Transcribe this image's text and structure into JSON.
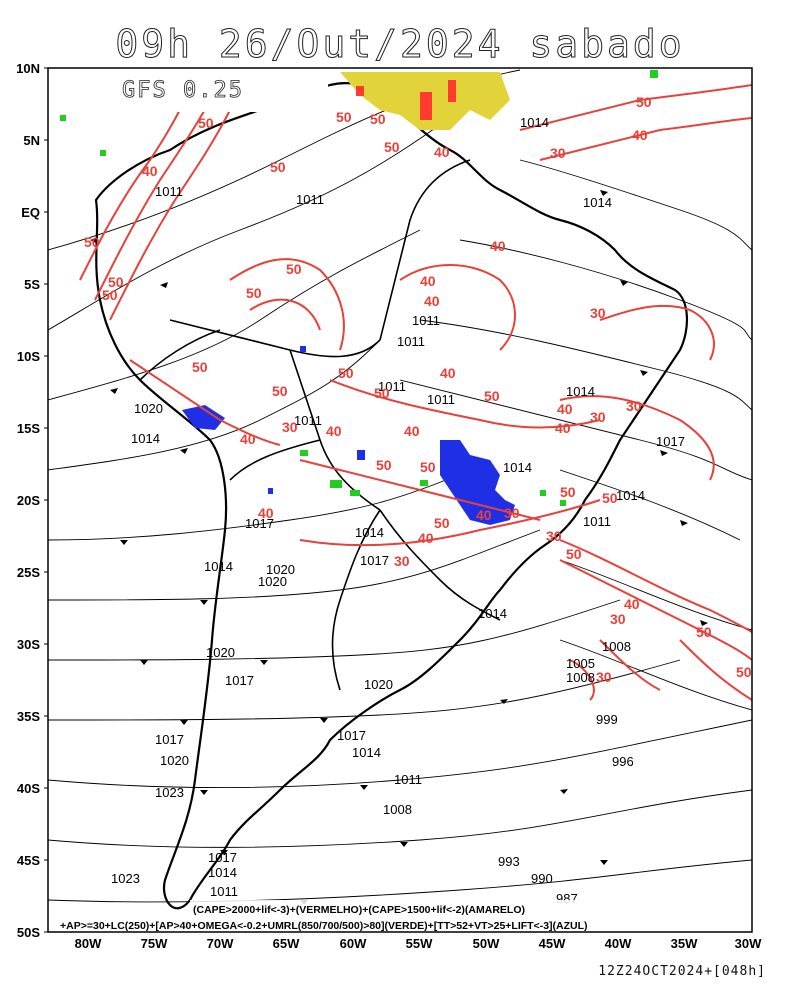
{
  "header": {
    "title": "09h 26/Out/2024 sabado",
    "model": "GFS 0.25",
    "timestamp": "12Z24OCT2024+[048h]"
  },
  "axes": {
    "lat_labels": [
      "10N",
      "5N",
      "EQ",
      "5S",
      "10S",
      "15S",
      "20S",
      "25S",
      "30S",
      "35S",
      "40S",
      "45S",
      "50S"
    ],
    "lon_labels": [
      "80W",
      "75W",
      "70W",
      "65W",
      "60W",
      "55W",
      "50W",
      "45W",
      "40W",
      "35W",
      "30W"
    ]
  },
  "pressure_labels": [
    "1014",
    "1014",
    "1011",
    "1011",
    "1011",
    "1011",
    "1011",
    "1014",
    "1020",
    "1014",
    "1011",
    "1011",
    "1014",
    "1017",
    "1014",
    "1011",
    "1017",
    "1014",
    "1020",
    "1020",
    "1017",
    "1014",
    "1008",
    "1005",
    "1008",
    "1020",
    "1017",
    "1020",
    "999",
    "996",
    "1017",
    "1014",
    "1011",
    "1008",
    "1023",
    "993",
    "990",
    "987",
    "1017",
    "1014",
    "1011",
    "1023",
    "1020",
    "1017",
    "1014"
  ],
  "wind_labels": [
    "50",
    "50",
    "50",
    "50",
    "40",
    "30",
    "40",
    "50",
    "40",
    "50",
    "50",
    "30",
    "50",
    "40",
    "50",
    "50",
    "40",
    "50",
    "40",
    "50",
    "40",
    "50",
    "30",
    "40",
    "40",
    "50",
    "40",
    "50",
    "50",
    "40",
    "30",
    "50",
    "30",
    "50",
    "40",
    "50",
    "30",
    "40",
    "30",
    "50",
    "40",
    "50",
    "50",
    "40",
    "30",
    "50",
    "30",
    "40",
    "50",
    "30"
  ],
  "legend": {
    "line1": "(CAPE>2000+lif<-3)+(VERMELHO)+(CAPE>1500+lif<-2)(AMARELO)",
    "line2": "+AP>=30+LC(250)+[AP>40+OMEGA<-0.2+UMRL(850/700/500)>80](VERDE)+[TT>52+VT>25+LIFT<-3](AZUL)"
  },
  "colors": {
    "wind_isotach": "#e8413a",
    "cape_high": "#ff3b30",
    "cape_moderate": "#e3d33a",
    "humidity_green": "#22cc22",
    "instability_blue": "#1f2fe6",
    "streamline": "#000000"
  }
}
